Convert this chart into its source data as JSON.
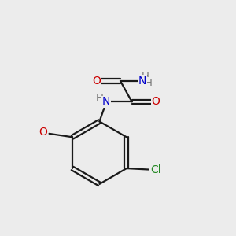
{
  "background_color": "#ececec",
  "bond_color": "#1a1a1a",
  "atom_colors": {
    "O": "#cc0000",
    "N": "#0000cc",
    "Cl": "#228822",
    "C": "#1a1a1a",
    "H": "#777777"
  },
  "figsize": [
    3.0,
    3.0
  ],
  "dpi": 100
}
